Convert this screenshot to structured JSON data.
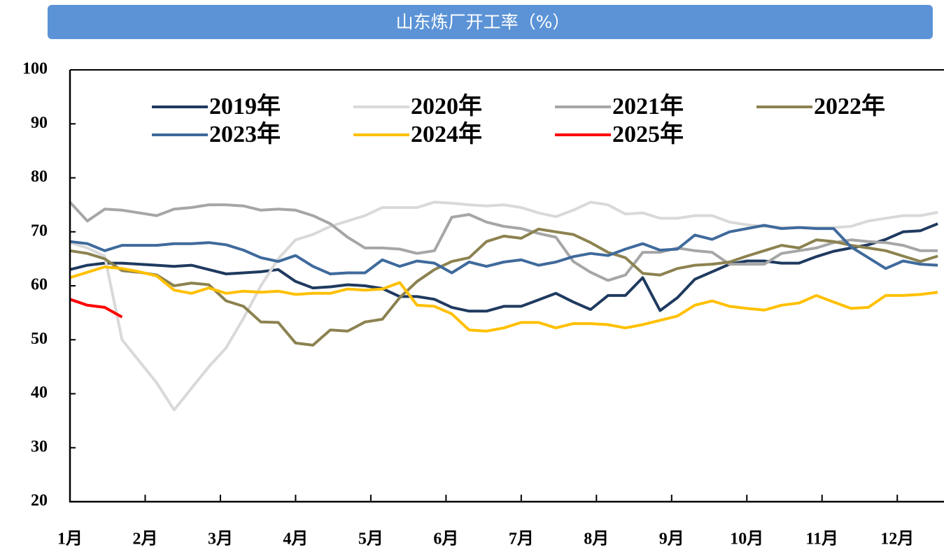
{
  "chart_data": {
    "type": "line",
    "title": "山东炼厂开工率（%）",
    "x": [
      0,
      1,
      2,
      3,
      4,
      5,
      6,
      7,
      8,
      9,
      10,
      11,
      12,
      13,
      14,
      15,
      16,
      17,
      18,
      19,
      20,
      21,
      22,
      23,
      24,
      25,
      26,
      27,
      28,
      29,
      30,
      31,
      32,
      33,
      34,
      35,
      36,
      37,
      38,
      39,
      40,
      41,
      42,
      43,
      44,
      45,
      46,
      47,
      48,
      49,
      50
    ],
    "xlim": [
      0,
      50.4
    ],
    "xticks": [
      {
        "value": 0,
        "label": "1月"
      },
      {
        "value": 4.333,
        "label": "2月"
      },
      {
        "value": 8.667,
        "label": "3月"
      },
      {
        "value": 13,
        "label": "4月"
      },
      {
        "value": 17.333,
        "label": "5月"
      },
      {
        "value": 21.667,
        "label": "6月"
      },
      {
        "value": 26,
        "label": "7月"
      },
      {
        "value": 30.333,
        "label": "8月"
      },
      {
        "value": 34.667,
        "label": "9月"
      },
      {
        "value": 39,
        "label": "10月"
      },
      {
        "value": 43.333,
        "label": "11月"
      },
      {
        "value": 47.667,
        "label": "12月"
      }
    ],
    "ylim": [
      20,
      100
    ],
    "yticks": [
      20,
      30,
      40,
      50,
      60,
      70,
      80,
      90,
      100
    ],
    "series": [
      {
        "name": "2019年",
        "color": "#1f3a5f",
        "values": [
          63,
          63.8,
          64.2,
          64.2,
          64,
          63.8,
          63.6,
          63.8,
          63,
          62.2,
          62.4,
          62.6,
          63,
          60.8,
          59.6,
          59.8,
          60.2,
          60,
          59.5,
          58,
          58,
          57.5,
          56,
          55.3,
          55.3,
          56.2,
          56.2,
          57.4,
          58.6,
          57,
          55.6,
          58.2,
          58.2,
          61.5,
          55.4,
          57.8,
          61.2,
          62.6,
          64,
          64.6,
          64.6,
          64.2,
          64.2,
          65.4,
          66.4,
          67,
          67.6,
          68.6,
          70,
          70.2,
          71.5
        ]
      },
      {
        "name": "2020年",
        "color": "#d9d9d9",
        "values": [
          68,
          67,
          65.5,
          50,
          46,
          42,
          37,
          41,
          45,
          48.5,
          54,
          60,
          65,
          68.5,
          69.5,
          71,
          72,
          73,
          74.5,
          74.5,
          74.5,
          75.5,
          75.3,
          75,
          74.8,
          75,
          74.5,
          73.5,
          72.8,
          74,
          75.5,
          75,
          73.3,
          73.5,
          72.5,
          72.5,
          73,
          73,
          71.8,
          71.3,
          71,
          70.8,
          70.8,
          70.8,
          70.8,
          71,
          72,
          72.5,
          73,
          73,
          73.6
        ]
      },
      {
        "name": "2021年",
        "color": "#a6a6a6",
        "values": [
          75.5,
          72,
          74.2,
          74,
          73.5,
          73,
          74.2,
          74.5,
          75,
          75,
          74.8,
          74,
          74.2,
          74,
          73,
          71.5,
          69,
          67,
          67,
          66.8,
          66,
          66.5,
          72.7,
          73.2,
          71.8,
          71,
          70.6,
          69.7,
          69,
          64.5,
          62.5,
          61,
          62,
          66.2,
          66.2,
          67,
          66.5,
          66.2,
          64,
          64,
          64,
          66,
          66.5,
          67,
          68,
          68.5,
          68.2,
          68,
          67.5,
          66.5,
          66.5
        ]
      },
      {
        "name": "2022年",
        "color": "#8c8250",
        "values": [
          66.5,
          66,
          65,
          62.8,
          62.5,
          62,
          60,
          60.5,
          60.2,
          57.2,
          56.2,
          53.3,
          53.2,
          49.4,
          49,
          51.8,
          51.6,
          53.3,
          53.8,
          57.8,
          60.8,
          63,
          64.5,
          65.2,
          68.2,
          69.2,
          68.8,
          70.5,
          70,
          69.5,
          68,
          66.2,
          65.2,
          62.3,
          62,
          63.2,
          63.8,
          64,
          64.4,
          65.5,
          66.5,
          67.5,
          67,
          68.5,
          68.2,
          67.5,
          67,
          66.5,
          65.5,
          64.5,
          65.5
        ]
      },
      {
        "name": "2023年",
        "color": "#3f6a9c",
        "values": [
          68.2,
          67.8,
          66.5,
          67.5,
          67.5,
          67.5,
          67.8,
          67.8,
          68,
          67.6,
          66.6,
          65.2,
          64.5,
          65.6,
          63.6,
          62.2,
          62.4,
          62.4,
          64.8,
          63.6,
          64.6,
          64.2,
          62.4,
          64.4,
          63.6,
          64.4,
          64.8,
          63.8,
          64.4,
          65.4,
          66,
          65.6,
          66.8,
          67.8,
          66.6,
          66.8,
          69.4,
          68.6,
          70,
          70.6,
          71.2,
          70.6,
          70.8,
          70.6,
          70.6,
          67.2,
          65.2,
          63.2,
          64.6,
          64,
          63.8
        ]
      },
      {
        "name": "2024年",
        "color": "#ffc000",
        "values": [
          61.5,
          62.5,
          63.5,
          63.2,
          62.6,
          61.8,
          59.2,
          58.6,
          59.6,
          58.6,
          59,
          58.8,
          59,
          58.4,
          58.6,
          58.6,
          59.4,
          59.2,
          59.4,
          60.6,
          56.4,
          56.2,
          54.8,
          51.8,
          51.6,
          52.2,
          53.2,
          53.2,
          52.2,
          53,
          53,
          52.8,
          52.2,
          52.8,
          53.6,
          54.4,
          56.4,
          57.2,
          56.2,
          55.8,
          55.5,
          56.4,
          56.8,
          58.2,
          57,
          55.8,
          56,
          58.2,
          58.2,
          58.4,
          58.8
        ]
      },
      {
        "name": "2025年",
        "color": "#ff0000",
        "values": [
          57.5,
          56.4,
          56,
          54.2,
          null,
          null,
          null,
          null,
          null,
          null,
          null,
          null,
          null,
          null,
          null,
          null,
          null,
          null,
          null,
          null,
          null,
          null,
          null,
          null,
          null,
          null,
          null,
          null,
          null,
          null,
          null,
          null,
          null,
          null,
          null,
          null,
          null,
          null,
          null,
          null,
          null,
          null,
          null,
          null,
          null,
          null,
          null,
          null,
          null,
          null,
          null
        ]
      }
    ]
  }
}
